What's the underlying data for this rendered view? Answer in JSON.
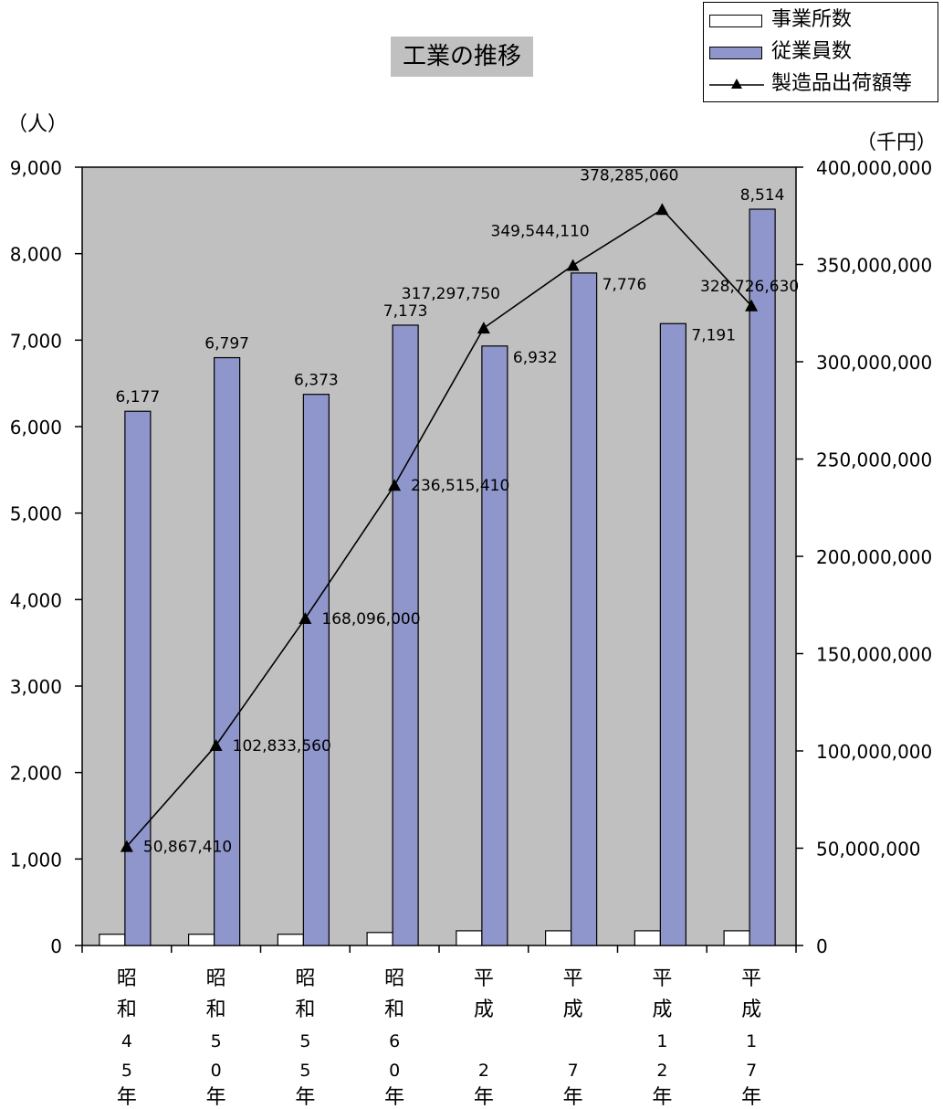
{
  "chart_data": {
    "type": "bar",
    "title": "工業の推移",
    "categories": [
      "昭和45年",
      "昭和50年",
      "昭和55年",
      "昭和60年",
      "平成2年",
      "平成7年",
      "平成12年",
      "平成17年"
    ],
    "category_lines": [
      [
        "昭",
        "和",
        "4",
        "5",
        "年"
      ],
      [
        "昭",
        "和",
        "5",
        "0",
        "年"
      ],
      [
        "昭",
        "和",
        "5",
        "5",
        "年"
      ],
      [
        "昭",
        "和",
        "6",
        "0",
        "年"
      ],
      [
        "平",
        "成",
        "",
        "2",
        "年"
      ],
      [
        "平",
        "成",
        "",
        "7",
        "年"
      ],
      [
        "平",
        "成",
        "1",
        "2",
        "年"
      ],
      [
        "平",
        "成",
        "1",
        "7",
        "年"
      ]
    ],
    "left_unit": "（人）",
    "right_unit": "（千円）",
    "left_axis": {
      "min": 0,
      "max": 9000,
      "step": 1000,
      "tick_labels": [
        "0",
        "1,000",
        "2,000",
        "3,000",
        "4,000",
        "5,000",
        "6,000",
        "7,000",
        "8,000",
        "9,000"
      ]
    },
    "right_axis": {
      "min": 0,
      "max": 400000000,
      "step": 50000000,
      "tick_labels": [
        "0",
        "50,000,000",
        "100,000,000",
        "150,000,000",
        "200,000,000",
        "250,000,000",
        "300,000,000",
        "350,000,000",
        "400,000,000"
      ]
    },
    "series": [
      {
        "name": "事業所数",
        "type": "bar",
        "axis": "left",
        "color": "#ffffff",
        "values": [
          130,
          130,
          130,
          150,
          170,
          170,
          170,
          170
        ]
      },
      {
        "name": "従業員数",
        "type": "bar",
        "axis": "left",
        "color": "#8f96cb",
        "values": [
          6177,
          6797,
          6373,
          7173,
          6932,
          7776,
          7191,
          8514
        ],
        "labels": [
          "6,177",
          "6,797",
          "6,373",
          "7,173",
          "6,932",
          "7,776",
          "7,191",
          "8,514"
        ]
      },
      {
        "name": "製造品出荷額等",
        "type": "line",
        "axis": "right",
        "color": "#000000",
        "marker": "triangle",
        "values": [
          50867410,
          102833560,
          168096000,
          236515410,
          317297750,
          349544110,
          378285060,
          328726630
        ],
        "labels": [
          "50,867,410",
          "102,833,560",
          "168,096,000",
          "236,515,410",
          "317,297,750",
          "349,544,110",
          "378,285,060",
          "328,726,630"
        ]
      }
    ],
    "plot_background": "#c0c0c0",
    "legend_position": "top-right",
    "grid": false
  }
}
